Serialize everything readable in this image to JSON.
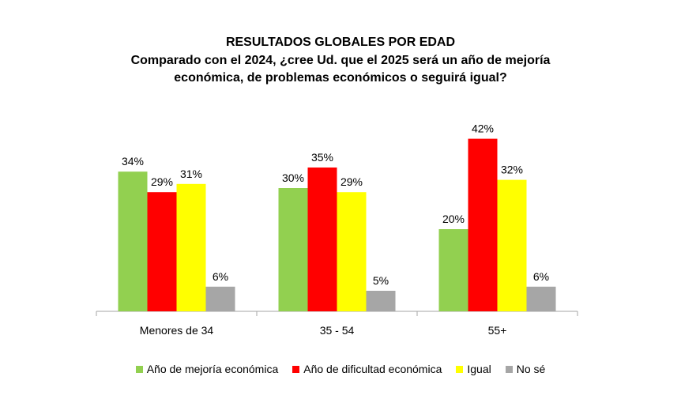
{
  "chart_data": {
    "type": "bar",
    "title": "RESULTADOS GLOBALES POR EDAD",
    "subtitle": "Comparado  con el 2024, ¿cree Ud.  que el 2025 será un año de mejoría económica, de problemas económicos o seguirá igual?",
    "categories": [
      "Menores de 34",
      "35 - 54",
      "55+"
    ],
    "series": [
      {
        "name": "Año de mejoría económica",
        "color": "#92D050",
        "values": [
          34,
          30,
          20
        ],
        "labels": [
          "34%",
          "30%",
          "20%"
        ]
      },
      {
        "name": "Año de dificultad económica",
        "color": "#FF0000",
        "values": [
          29,
          35,
          42
        ],
        "labels": [
          "29%",
          "35%",
          "42%"
        ]
      },
      {
        "name": "Igual",
        "color": "#FFFF00",
        "values": [
          31,
          29,
          32
        ],
        "labels": [
          "31%",
          "29%",
          "32%"
        ]
      },
      {
        "name": "No sé",
        "color": "#A6A6A6",
        "values": [
          6,
          5,
          6
        ],
        "labels": [
          "6%",
          "5%",
          "6%"
        ]
      }
    ],
    "ylim": [
      0,
      45
    ],
    "grid": false,
    "legend_position": "bottom",
    "xlabel": "",
    "ylabel": ""
  }
}
